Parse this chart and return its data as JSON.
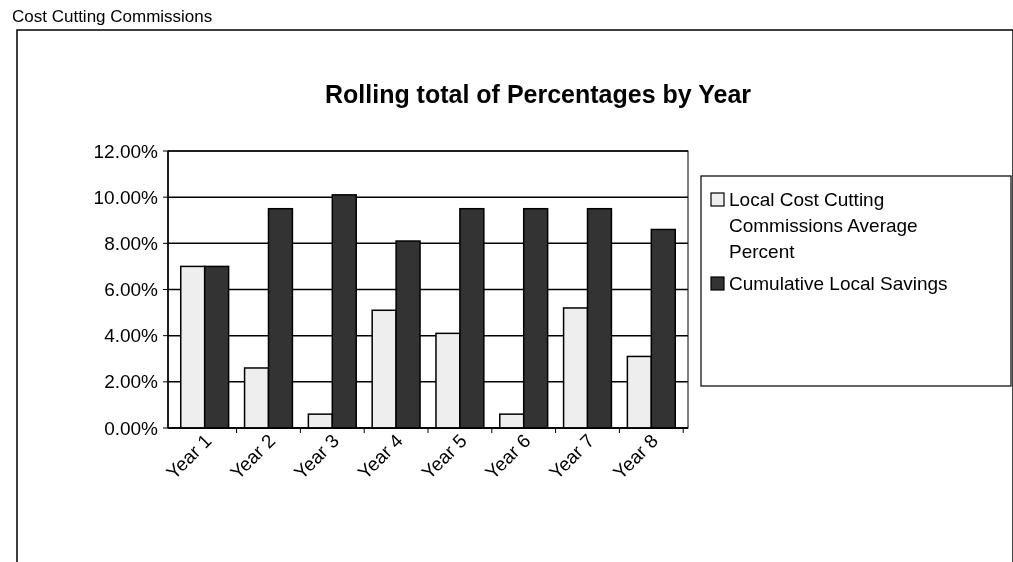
{
  "chart_data": {
    "type": "bar",
    "title": "Rolling total of Percentages by Year",
    "annotations": [
      "Cost Cutting Commissions"
    ],
    "categories": [
      "Year 1",
      "Year 2",
      "Year 3",
      "Year 4",
      "Year 5",
      "Year 6",
      "Year 7",
      "Year 8"
    ],
    "series": [
      {
        "name": "Local Cost Cutting Commissions Average Percent",
        "color": "#eeeeee",
        "values": [
          7.0,
          2.6,
          0.6,
          5.1,
          4.1,
          0.6,
          5.2,
          3.1
        ]
      },
      {
        "name": "Cumulative Local Savings",
        "color": "#333333",
        "values": [
          7.0,
          9.5,
          10.1,
          8.1,
          9.5,
          9.5,
          9.5,
          8.6
        ]
      }
    ],
    "ylim": [
      0,
      12
    ],
    "yticks": [
      {
        "value": 0,
        "label": "0.00%"
      },
      {
        "value": 2,
        "label": "2.00%"
      },
      {
        "value": 4,
        "label": "4.00%"
      },
      {
        "value": 6,
        "label": "6.00%"
      },
      {
        "value": 8,
        "label": "8.00%"
      },
      {
        "value": 10,
        "label": "10.00%"
      },
      {
        "value": 12,
        "label": "12.00%"
      }
    ],
    "grid": "y",
    "legend": "right"
  }
}
